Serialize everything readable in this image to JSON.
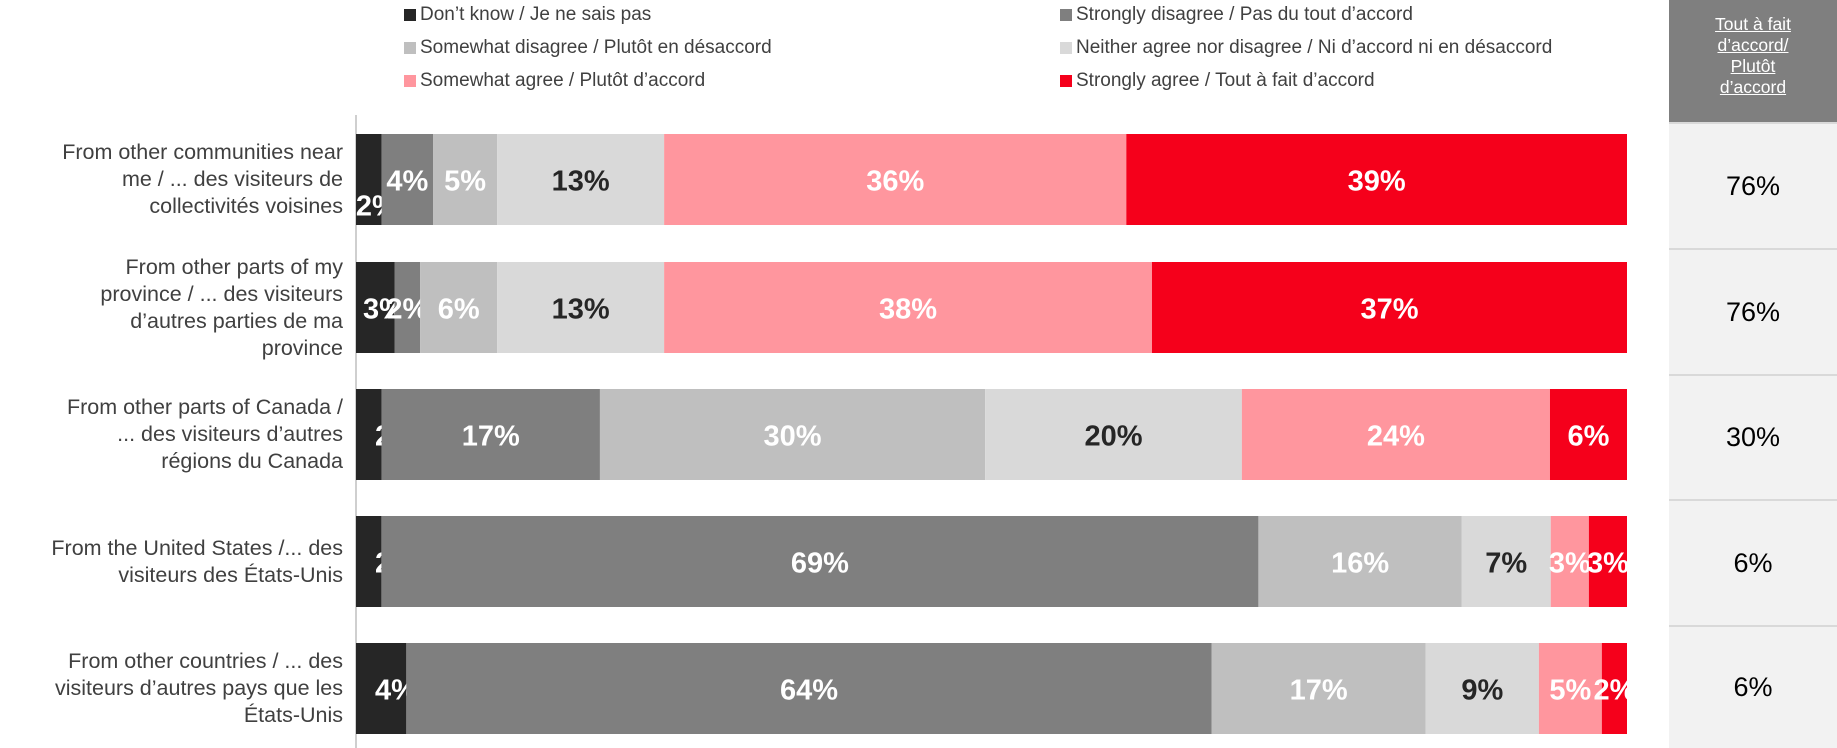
{
  "chart_data": {
    "type": "bar",
    "orientation": "horizontal",
    "stacked": true,
    "xlim": [
      0,
      100
    ],
    "categories": [
      "From other communities near me / ... des visiteurs de collectivités voisines",
      "From other parts of my province / ... des visiteurs d’autres parties de ma province",
      "From other parts of Canada / ... des visiteurs d’autres régions du Canada",
      "From the United States /... des visiteurs des États-Unis",
      "From other countries / ... des visiteurs d’autres pays que les États-Unis"
    ],
    "series": [
      {
        "name": "Don’t know / Je ne sais pas",
        "color": "#262626",
        "values": [
          2,
          3,
          2,
          2,
          4
        ],
        "labels": [
          "2%",
          "3%",
          "2%",
          "2%",
          "4%"
        ]
      },
      {
        "name": "Strongly disagree / Pas du tout d’accord",
        "color": "#7f7f7f",
        "values": [
          4,
          2,
          17,
          69,
          64
        ],
        "labels": [
          "4%",
          "2%",
          "17%",
          "69%",
          "64%"
        ]
      },
      {
        "name": "Somewhat disagree / Plutôt en désaccord",
        "color": "#bfbfbf",
        "values": [
          5,
          6,
          30,
          16,
          17
        ],
        "labels": [
          "5%",
          "6%",
          "30%",
          "16%",
          "17%"
        ]
      },
      {
        "name": "Neither agree nor disagree / Ni d’accord ni en désaccord",
        "color": "#d9d9d9",
        "values": [
          13,
          13,
          20,
          7,
          9
        ],
        "labels": [
          "13%",
          "13%",
          "20%",
          "7%",
          "9%"
        ]
      },
      {
        "name": "Somewhat agree / Plutôt d’accord",
        "color": "#ff969e",
        "values": [
          36,
          38,
          24,
          3,
          5
        ],
        "labels": [
          "36%",
          "38%",
          "24%",
          "3%",
          "5%"
        ]
      },
      {
        "name": "Strongly agree / Tout à fait d’accord",
        "color": "#f5001b",
        "values": [
          39,
          37,
          6,
          3,
          2
        ],
        "labels": [
          "39%",
          "37%",
          "6%",
          "3%",
          "2%"
        ]
      }
    ],
    "legend_placement": "top",
    "side_column": {
      "header": "Tout à fait d’accord/ Plutôt d’accord",
      "header_lines": [
        "Tout à fait",
        "d’accord/",
        "Plutôt",
        "d’accord"
      ],
      "values": [
        "76%",
        "76%",
        "30%",
        "6%",
        "6%"
      ]
    }
  },
  "category_lines": [
    [
      "From other communities near",
      "me / ... des visiteurs de",
      "collectivités voisines"
    ],
    [
      "From other parts of my",
      "province / ... des visiteurs",
      "d’autres parties de ma",
      "province"
    ],
    [
      "From other parts of Canada /",
      "... des visiteurs d’autres",
      "régions du Canada"
    ],
    [
      "From the United States /... des",
      "visiteurs des États-Unis"
    ],
    [
      "From other countries / ... des",
      "visiteurs d’autres pays que les",
      "États-Unis"
    ]
  ]
}
